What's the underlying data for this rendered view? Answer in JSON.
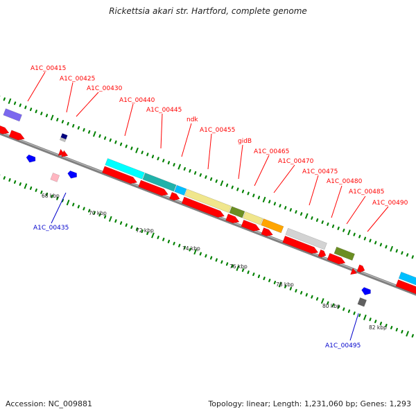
{
  "title": "Rickettsia akari str. Hartford, complete genome",
  "accession": "Accession: NC_009881",
  "summary": "Topology: linear; Length: 1,231,060 bp; Genes: 1,293",
  "colors": {
    "strand_plus": "#ff0000",
    "strand_minus": "#0000ff",
    "tick": "#008000",
    "backbone": "#808080",
    "label_top": "#ff0000",
    "label_bottom": "#0000cc"
  },
  "scale_labels": [
    "68 kbp",
    "70 kbp",
    "72 kbp",
    "74 kbp",
    "76 kbp",
    "78 kbp",
    "80 kbp",
    "82 kbp"
  ],
  "gene_labels_top": [
    "A1C_00415",
    "A1C_00425",
    "A1C_00430",
    "A1C_00440",
    "A1C_00445",
    "ndk",
    "A1C_00455",
    "gidB",
    "A1C_00465",
    "A1C_00470",
    "A1C_00475",
    "A1C_00480",
    "A1C_00485",
    "A1C_00490"
  ],
  "gene_labels_bottom": [
    "A1C_00435",
    "A1C_00495"
  ],
  "feature_colors": [
    "#7b68ee",
    "#00ffff",
    "#20b2aa",
    "#00bfff",
    "#f0e68c",
    "#6b8e23",
    "#ffa500",
    "#d3d3d3",
    "#6b8e23",
    "#00bfff"
  ]
}
